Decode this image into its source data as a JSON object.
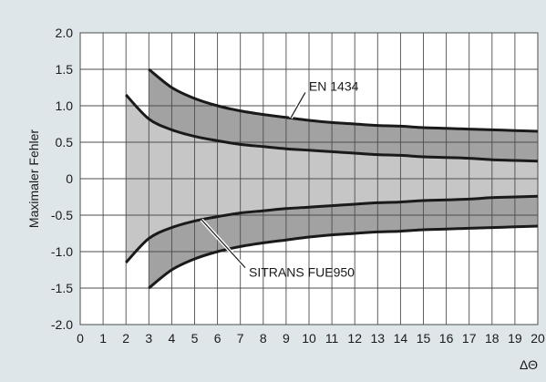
{
  "chart_data": {
    "type": "area",
    "title": "",
    "ylabel": "Maximaler Fehler",
    "xlabel": "ΔΘ",
    "xlim": [
      0,
      20
    ],
    "ylim": [
      -2.0,
      2.0
    ],
    "grid": true,
    "x_ticks": [
      "0",
      "1",
      "2",
      "3",
      "4",
      "5",
      "6",
      "7",
      "8",
      "9",
      "10",
      "11",
      "12",
      "13",
      "14",
      "15",
      "16",
      "17",
      "18",
      "19",
      "20"
    ],
    "y_ticks": [
      "2.0",
      "1.5",
      "1.0",
      "0.5",
      "0",
      "-0.5",
      "-1.0",
      "-1.5",
      "-2.0"
    ],
    "series": [
      {
        "name": "EN 1434",
        "x": [
          3,
          4,
          5,
          6,
          7,
          8,
          9,
          10,
          11,
          12,
          13,
          14,
          15,
          16,
          17,
          18,
          19,
          20
        ],
        "upper": [
          1.5,
          1.25,
          1.1,
          1.0,
          0.93,
          0.88,
          0.84,
          0.8,
          0.77,
          0.75,
          0.73,
          0.72,
          0.7,
          0.69,
          0.68,
          0.67,
          0.66,
          0.65
        ],
        "lower": [
          -1.5,
          -1.25,
          -1.1,
          -1.0,
          -0.93,
          -0.88,
          -0.84,
          -0.8,
          -0.77,
          -0.75,
          -0.73,
          -0.72,
          -0.7,
          -0.69,
          -0.68,
          -0.67,
          -0.66,
          -0.65
        ]
      },
      {
        "name": "SITRANS FUE950",
        "x": [
          2,
          3,
          4,
          5,
          6,
          7,
          8,
          9,
          10,
          11,
          12,
          13,
          14,
          15,
          16,
          17,
          18,
          19,
          20
        ],
        "upper": [
          1.15,
          0.82,
          0.67,
          0.58,
          0.52,
          0.47,
          0.44,
          0.41,
          0.39,
          0.37,
          0.35,
          0.33,
          0.32,
          0.3,
          0.29,
          0.28,
          0.26,
          0.25,
          0.24
        ],
        "lower": [
          -1.15,
          -0.82,
          -0.67,
          -0.58,
          -0.52,
          -0.47,
          -0.44,
          -0.41,
          -0.39,
          -0.37,
          -0.35,
          -0.33,
          -0.32,
          -0.3,
          -0.29,
          -0.28,
          -0.26,
          -0.25,
          -0.24
        ]
      }
    ],
    "annotations": [
      {
        "text": "EN 1434",
        "points_to_series": "EN 1434",
        "at_x": 9.2
      },
      {
        "text": "SITRANS FUE950",
        "points_to_series": "SITRANS FUE950",
        "at_x": 5.3
      }
    ],
    "colors": {
      "background": "#dfe6e9",
      "plot_background": "#ffffff",
      "outer_band": "#a2a2a2",
      "inner_band": "#c6c6c6",
      "curve": "#1a1a1a",
      "grid": "#4d4d4d"
    }
  }
}
